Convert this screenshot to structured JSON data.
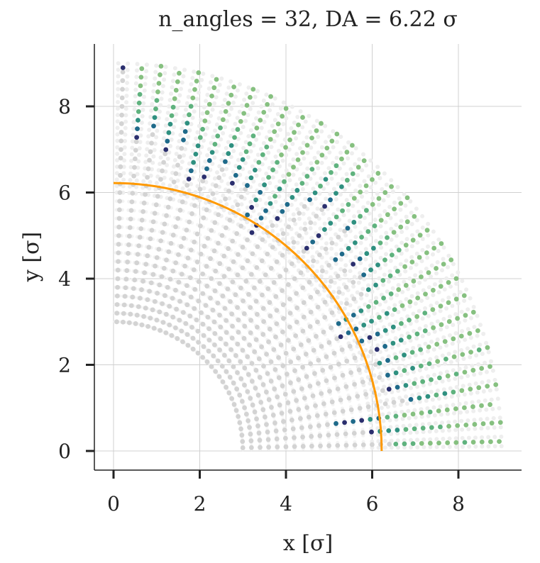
{
  "chart_data": {
    "type": "scatter",
    "title": "n_angles = 32, DA = 6.22 σ",
    "xlabel": "x [σ]",
    "ylabel": "y [σ]",
    "xlim": [
      -0.45,
      9.45
    ],
    "ylim": [
      -0.45,
      9.45
    ],
    "xticks": [
      0,
      2,
      4,
      6,
      8
    ],
    "yticks": [
      0,
      2,
      4,
      6,
      8
    ],
    "grid": true,
    "n_angles": 32,
    "dynamic_aperture": 6.22,
    "grid_radius_range": [
      3.0,
      9.0
    ],
    "grid_rings": 31,
    "colors": {
      "surviving_particles": "#d3d3d3",
      "outer_lost_background": "#eeeeee",
      "da_arc": "#ff9900",
      "palette": [
        "#2b2f6e",
        "#1f6a8a",
        "#2f9080",
        "#5fb27e",
        "#86c080"
      ]
    },
    "lost_particles_by_angle": [
      {
        "angle_index": 0,
        "start_radius": 6.55,
        "colors": [
          3,
          3,
          3,
          4,
          4,
          4,
          4,
          4,
          3,
          4,
          4,
          4,
          4,
          4,
          4,
          4
        ]
      },
      {
        "angle_index": 1,
        "start_radius": 6.0,
        "colors": [
          0,
          2,
          2,
          2,
          3,
          3,
          3,
          3,
          3,
          4,
          4,
          4,
          4,
          4,
          4,
          4,
          4,
          4
        ]
      },
      {
        "angle_index": 2,
        "start_radius": 5.2,
        "colors": [
          1,
          0,
          1,
          0,
          2,
          1,
          3,
          3,
          4,
          4,
          4,
          3,
          4,
          4,
          4,
          4,
          4,
          4,
          4
        ]
      },
      {
        "angle_index": 3,
        "start_radius": 7.0,
        "colors": [
          1,
          2,
          2,
          3,
          2,
          3,
          4,
          4,
          4,
          4,
          4,
          4,
          4
        ]
      },
      {
        "angle_index": 4,
        "start_radius": 6.55,
        "colors": [
          0,
          1,
          2,
          3,
          3,
          3,
          3,
          4,
          3,
          4,
          4,
          4,
          4,
          4
        ]
      },
      {
        "angle_index": 5,
        "start_radius": 6.6,
        "colors": [
          1,
          2,
          3,
          2,
          3,
          3,
          4,
          3,
          4,
          4,
          4,
          3,
          4,
          4
        ]
      },
      {
        "angle_index": 6,
        "start_radius": 6.5,
        "colors": [
          2,
          1,
          3,
          2,
          3,
          3,
          4,
          4,
          4,
          4,
          4,
          4,
          4,
          4
        ]
      },
      {
        "angle_index": 7,
        "start_radius": 6.55,
        "colors": [
          0,
          1,
          2,
          2,
          3,
          3,
          3,
          4,
          4,
          4,
          4,
          4,
          4,
          4
        ]
      },
      {
        "angle_index": 8,
        "start_radius": 6.3,
        "colors": [
          1,
          0,
          1,
          2,
          2,
          3,
          3,
          4,
          3,
          4,
          4,
          4,
          4,
          4,
          4
        ]
      },
      {
        "angle_index": 9,
        "start_radius": 5.9,
        "colors": [
          0,
          1,
          1,
          2,
          2,
          3,
          2,
          3,
          4,
          4,
          4,
          4,
          4,
          4,
          4,
          4
        ]
      },
      {
        "angle_index": 10,
        "start_radius": 6.0,
        "colors": [
          1,
          2,
          1,
          2,
          3,
          3,
          3,
          3,
          4,
          4,
          4,
          4,
          4,
          4,
          4,
          4
        ]
      },
      {
        "angle_index": 11,
        "start_radius": 7.0,
        "colors": [
          2,
          2,
          3,
          3,
          3,
          4,
          4,
          4,
          4,
          4,
          4,
          4,
          4
        ]
      },
      {
        "angle_index": 12,
        "start_radius": 7.1,
        "colors": [
          1,
          2,
          2,
          3,
          3,
          3,
          4,
          4,
          4,
          4,
          4,
          4
        ]
      },
      {
        "angle_index": 13,
        "start_radius": 7.05,
        "colors": [
          0,
          1,
          2,
          2,
          3,
          3,
          4,
          4,
          4,
          4,
          4,
          4,
          4
        ]
      },
      {
        "angle_index": 14,
        "start_radius": 6.8,
        "colors": [
          1,
          1,
          2,
          2,
          3,
          3,
          3,
          4,
          4,
          4,
          4,
          4,
          4,
          4
        ]
      },
      {
        "angle_index": 15,
        "start_radius": 7.5,
        "colors": [
          1,
          2,
          3,
          3,
          4,
          4,
          4,
          4,
          4,
          4,
          4
        ]
      },
      {
        "angle_index": 16,
        "start_radius": 6.5,
        "colors": [
          0,
          1,
          0,
          2,
          2,
          3,
          3,
          3,
          4,
          4,
          4,
          4,
          4,
          4
        ]
      },
      {
        "angle_index": 17,
        "start_radius": 7.5,
        "colors": [
          0,
          1,
          2,
          2,
          3,
          3,
          4,
          4,
          4,
          4,
          4
        ]
      },
      {
        "angle_index": 18,
        "start_radius": 7.4,
        "colors": [
          1,
          2,
          3,
          2,
          3,
          3,
          4,
          4,
          4,
          4,
          4
        ]
      },
      {
        "angle_index": 19,
        "start_radius": 6.6,
        "colors": [
          0,
          1,
          1,
          2,
          2,
          3,
          3,
          3,
          4,
          4,
          4,
          4,
          4,
          4
        ]
      },
      {
        "angle_index": 20,
        "start_radius": 6.0,
        "colors": [
          0,
          0,
          1,
          1,
          2,
          3,
          2,
          3,
          4,
          4,
          4,
          4,
          4,
          4,
          4,
          4
        ]
      },
      {
        "angle_index": 21,
        "start_radius": 6.3,
        "colors": [
          1,
          0,
          2,
          1,
          2,
          3,
          3,
          3,
          4,
          4,
          4,
          4,
          4,
          4,
          4
        ]
      },
      {
        "angle_index": 22,
        "start_radius": 6.9,
        "colors": [
          1,
          2,
          2,
          3,
          3,
          3,
          4,
          4,
          4,
          4,
          4,
          4,
          4
        ]
      },
      {
        "angle_index": 23,
        "start_radius": 6.8,
        "colors": [
          0,
          1,
          2,
          2,
          3,
          3,
          3,
          4,
          4,
          4,
          4,
          4,
          4
        ]
      },
      {
        "angle_index": 24,
        "start_radius": 7.2,
        "colors": [
          1,
          2,
          2,
          3,
          3,
          4,
          4,
          4,
          4,
          4,
          4,
          4
        ]
      },
      {
        "angle_index": 25,
        "start_radius": 6.7,
        "colors": [
          0,
          1,
          1,
          2,
          3,
          3,
          3,
          4,
          4,
          4,
          4,
          4,
          4,
          4
        ]
      },
      {
        "angle_index": 26,
        "start_radius": 6.55,
        "colors": [
          0,
          1,
          2,
          2,
          2,
          3,
          3,
          4,
          4,
          4,
          4,
          4,
          4,
          4
        ]
      },
      {
        "angle_index": 27,
        "start_radius": 7.4,
        "colors": [
          1,
          1,
          2,
          3,
          3,
          4,
          4,
          4,
          4,
          4,
          4
        ]
      },
      {
        "angle_index": 28,
        "start_radius": 7.1,
        "colors": [
          0,
          1,
          2,
          2,
          3,
          3,
          4,
          4,
          4,
          4,
          4,
          4
        ]
      },
      {
        "angle_index": 29,
        "start_radius": 7.6,
        "colors": [
          1,
          2,
          3,
          3,
          4,
          4,
          4,
          4,
          4,
          4,
          4
        ]
      },
      {
        "angle_index": 30,
        "start_radius": 7.3,
        "colors": [
          0,
          1,
          2,
          3,
          3,
          3,
          4,
          4,
          4,
          4,
          4,
          4
        ]
      },
      {
        "angle_index": 31,
        "start_radius": 8.9,
        "colors": [
          0
        ]
      }
    ]
  }
}
